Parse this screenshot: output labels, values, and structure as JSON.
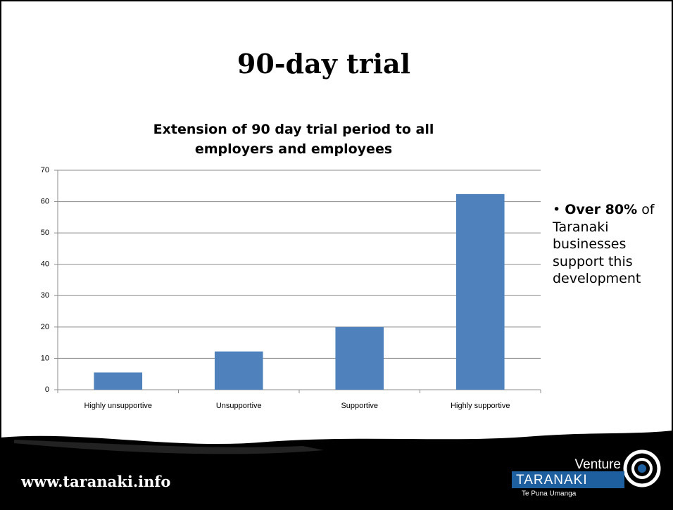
{
  "slide_title": "90-day trial",
  "chart_data": {
    "type": "bar",
    "title": "Extension of 90 day trial period to all employers and employees",
    "categories": [
      "Highly unsupportive",
      "Unsupportive",
      "Supportive",
      "Highly supportive"
    ],
    "values": [
      5.5,
      12.2,
      20,
      62.4
    ],
    "color": "#4f81bd",
    "ylim": [
      0,
      70
    ],
    "yticks": [
      0,
      10,
      20,
      30,
      40,
      50,
      60,
      70
    ],
    "grid": true
  },
  "bullet": {
    "bold": "Over 80%",
    "text": "of Taranaki businesses support this development"
  },
  "footer": {
    "url": "www.taranaki.info",
    "logo_top": "Venture",
    "logo_main": "TARANAKI",
    "logo_sub": "Te Puna Umanga"
  }
}
